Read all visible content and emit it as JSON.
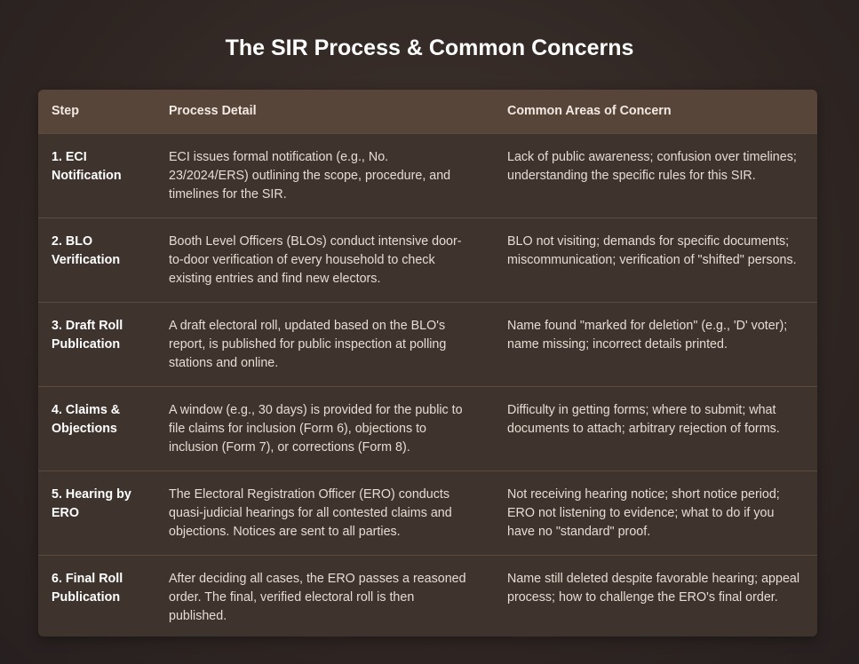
{
  "header": {
    "title": "The SIR Process & Common Concerns"
  },
  "table": {
    "columns": [
      "Step",
      "Process Detail",
      "Common Areas of Concern"
    ],
    "rows": [
      [
        "1. ECI Notification",
        "ECI issues formal notification (e.g., No. 23/2024/ERS) outlining the scope, procedure, and timelines for the SIR.",
        "Lack of public awareness; confusion over timelines; understanding the specific rules for this SIR."
      ],
      [
        "2. BLO Verification",
        "Booth Level Officers (BLOs) conduct intensive door-to-door verification of every household to check existing entries and find new electors.",
        "BLO not visiting; demands for specific documents; miscommunication; verification of \"shifted\" persons."
      ],
      [
        "3. Draft Roll Publication",
        "A draft electoral roll, updated based on the BLO's report, is published for public inspection at polling stations and online.",
        "Name found \"marked for deletion\" (e.g., 'D' voter); name missing; incorrect details printed."
      ],
      [
        "4. Claims & Objections",
        "A window (e.g., 30 days) is provided for the public to file claims for inclusion (Form 6), objections to inclusion (Form 7), or corrections (Form 8).",
        "Difficulty in getting forms; where to submit; what documents to attach; arbitrary rejection of forms."
      ],
      [
        "5. Hearing by ERO",
        "The Electoral Registration Officer (ERO) conducts quasi-judicial hearings for all contested claims and objections. Notices are sent to all parties.",
        "Not receiving hearing notice; short notice period; ERO not listening to evidence; what to do if you have no \"standard\" proof."
      ],
      [
        "6. Final Roll Publication",
        "After deciding all cases, the ERO passes a reasoned order. The final, verified electoral roll is then published.",
        "Name still deleted despite favorable hearing; appeal process; how to challenge the ERO's final order."
      ]
    ]
  }
}
